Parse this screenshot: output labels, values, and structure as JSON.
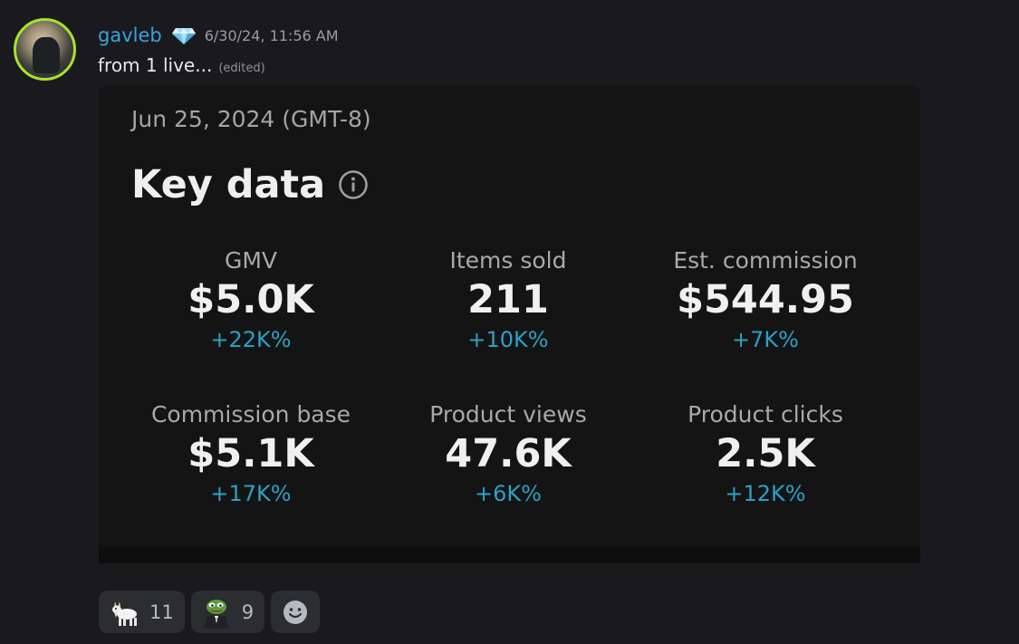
{
  "message": {
    "username": "gavleb",
    "badge_icon": "diamond-badge-icon",
    "timestamp": "6/30/24, 11:56 AM",
    "text": "from 1 live...",
    "edited_label": "(edited)"
  },
  "embed": {
    "date": "Jun 25, 2024 (GMT-8)",
    "title": "Key data",
    "info_icon": "info-circle-icon",
    "metrics": [
      {
        "label": "GMV",
        "value": "$5.0K",
        "delta": "+22K%"
      },
      {
        "label": "Items sold",
        "value": "211",
        "delta": "+10K%"
      },
      {
        "label": "Est. commission",
        "value": "$544.95",
        "delta": "+7K%"
      },
      {
        "label": "Commission base",
        "value": "$5.1K",
        "delta": "+17K%"
      },
      {
        "label": "Product views",
        "value": "47.6K",
        "delta": "+6K%"
      },
      {
        "label": "Product clicks",
        "value": "2.5K",
        "delta": "+12K%"
      }
    ],
    "accent_color": "#2ba0c4"
  },
  "reactions": [
    {
      "emoji": "goat-emoji",
      "count": "11"
    },
    {
      "emoji": "pepe-tuxedo-emoji",
      "count": "9"
    }
  ],
  "add_reaction_icon": "smiley-add-reaction-icon",
  "colors": {
    "username": "#3aa3d9",
    "background": "#1a1a1e",
    "embed_background": "#141414"
  }
}
